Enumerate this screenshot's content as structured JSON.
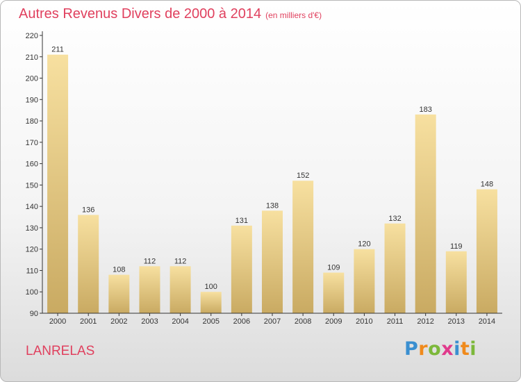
{
  "header": {
    "title": "Autres Revenus Divers de 2000 à 2014",
    "unit": "(en milliers d'€)"
  },
  "footer": {
    "commune": "LANRELAS",
    "logo_letters": [
      "P",
      "r",
      "o",
      "x",
      "i",
      "t",
      "i"
    ],
    "logo_colors": [
      "#3a8fd0",
      "#f08a1c",
      "#7cb83a",
      "#e03a8c",
      "#3a8fd0",
      "#f08a1c",
      "#7cb83a"
    ]
  },
  "chart_data": {
    "type": "bar",
    "categories": [
      "2000",
      "2001",
      "2002",
      "2003",
      "2004",
      "2005",
      "2006",
      "2007",
      "2008",
      "2009",
      "2010",
      "2011",
      "2012",
      "2013",
      "2014"
    ],
    "values": [
      211,
      136,
      108,
      112,
      112,
      100,
      131,
      138,
      152,
      109,
      120,
      132,
      183,
      119,
      148
    ],
    "title": "Autres Revenus Divers de 2000 à 2014",
    "xlabel": "",
    "ylabel": "",
    "ylim": [
      90,
      220
    ],
    "yticks": [
      90,
      100,
      110,
      120,
      130,
      140,
      150,
      160,
      170,
      180,
      190,
      200,
      210,
      220
    ],
    "grid": false,
    "legend": "none",
    "bar_color_light": "#f7e0a0",
    "bar_color_dark": "#c9aa62",
    "axis_color": "#333333"
  }
}
